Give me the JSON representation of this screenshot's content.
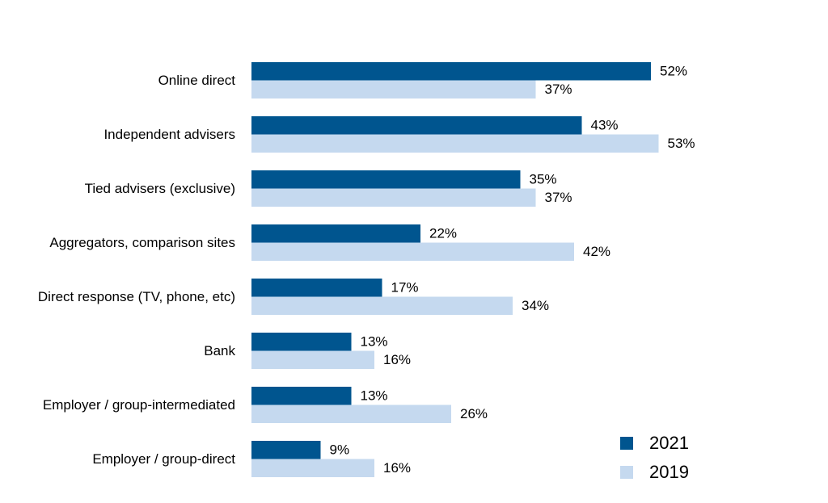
{
  "chart_data": {
    "type": "bar",
    "orientation": "horizontal",
    "categories": [
      "Online direct",
      "Independent advisers",
      "Tied advisers (exclusive)",
      "Aggregators, comparison sites",
      "Direct response (TV, phone, etc)",
      "Bank",
      "Employer / group-intermediated",
      "Employer / group-direct"
    ],
    "series": [
      {
        "name": "2021",
        "color": "#00558f",
        "values": [
          52,
          43,
          35,
          22,
          17,
          13,
          13,
          9
        ]
      },
      {
        "name": "2019",
        "color": "#c5d9ef",
        "values": [
          37,
          53,
          37,
          42,
          34,
          16,
          26,
          16
        ]
      }
    ],
    "value_suffix": "%",
    "xlim": [
      0,
      100
    ],
    "grid": false,
    "legend_position": "bottom-right"
  }
}
